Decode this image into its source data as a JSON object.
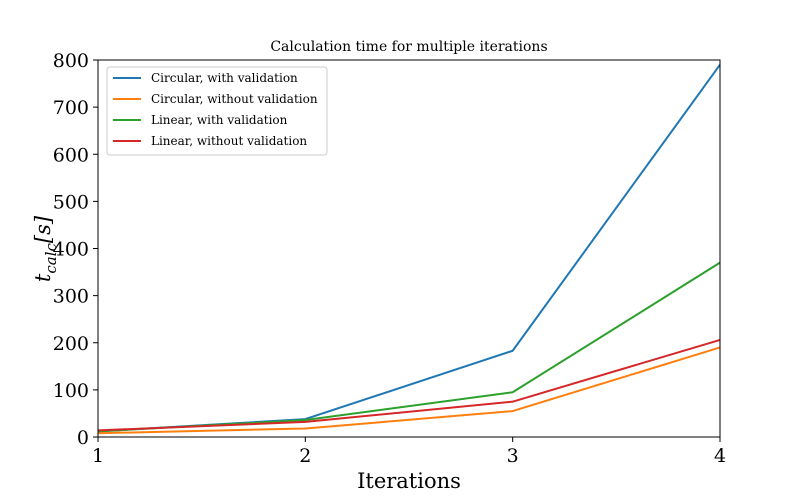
{
  "chart_data": {
    "type": "line",
    "title": "Calculation time for multiple iterations",
    "xlabel": "Iterations",
    "ylabel": {
      "main": "t",
      "subscript": "calc",
      "unit": "[s]"
    },
    "x": [
      1,
      2,
      3,
      4
    ],
    "xlim": [
      1,
      4
    ],
    "ylim": [
      0,
      800
    ],
    "xticks": [
      1,
      2,
      3,
      4
    ],
    "yticks": [
      0,
      100,
      200,
      300,
      400,
      500,
      600,
      700,
      800
    ],
    "grid": false,
    "legend_position": "upper-left",
    "series": [
      {
        "name": "Circular, with validation",
        "color": "#1f77b4",
        "values": [
          12,
          38,
          183,
          790
        ]
      },
      {
        "name": "Circular, without validation",
        "color": "#ff7f0e",
        "values": [
          8,
          18,
          55,
          190
        ]
      },
      {
        "name": "Linear, with validation",
        "color": "#2ca02c",
        "values": [
          12,
          36,
          95,
          370
        ]
      },
      {
        "name": "Linear, without validation",
        "color": "#d62728",
        "values": [
          14,
          32,
          75,
          206
        ]
      }
    ]
  }
}
